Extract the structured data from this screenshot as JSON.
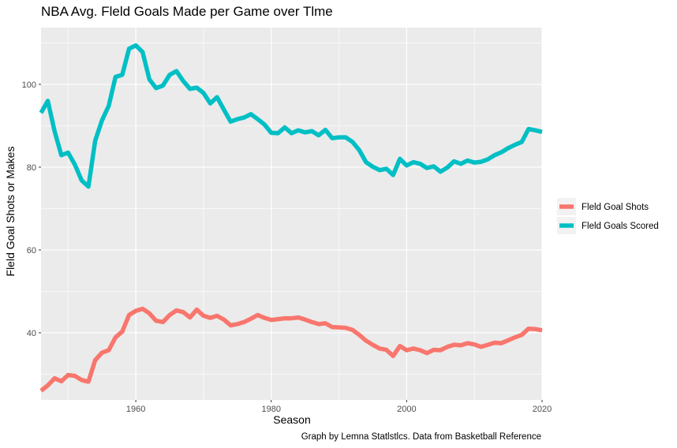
{
  "chart_data": {
    "type": "line",
    "title": "NBA Avg. Fleld Goals Made per Game over Tlme",
    "xlabel": "Season",
    "ylabel": "Fleld Goal Shots or Makes",
    "caption": "Graph by Lemna Statlstlcs. Data from Basketball Reference",
    "xlim": [
      1946,
      2020
    ],
    "ylim": [
      23.8,
      113.7
    ],
    "x_ticks": [
      1960,
      1980,
      2000,
      2020
    ],
    "y_ticks": [
      40,
      60,
      80,
      100
    ],
    "grid": true,
    "legend_position": "right",
    "x": [
      1946,
      1947,
      1948,
      1949,
      1950,
      1951,
      1952,
      1953,
      1954,
      1955,
      1956,
      1957,
      1958,
      1959,
      1960,
      1961,
      1962,
      1963,
      1964,
      1965,
      1966,
      1967,
      1968,
      1969,
      1970,
      1971,
      1972,
      1973,
      1974,
      1975,
      1976,
      1977,
      1978,
      1979,
      1980,
      1981,
      1982,
      1983,
      1984,
      1985,
      1986,
      1987,
      1988,
      1989,
      1990,
      1991,
      1992,
      1993,
      1994,
      1995,
      1996,
      1997,
      1998,
      1999,
      2000,
      2001,
      2002,
      2003,
      2004,
      2005,
      2006,
      2007,
      2008,
      2009,
      2010,
      2011,
      2012,
      2013,
      2014,
      2015,
      2016,
      2017,
      2018,
      2019,
      2020
    ],
    "series": [
      {
        "name": "Fleld Goal Shots",
        "color": "#F8766D",
        "values": [
          26.0,
          27.3,
          29.0,
          28.3,
          29.8,
          29.6,
          28.6,
          28.2,
          33.4,
          35.2,
          35.8,
          38.9,
          40.3,
          44.3,
          45.3,
          45.8,
          44.7,
          42.9,
          42.6,
          44.3,
          45.4,
          45.0,
          43.7,
          45.6,
          44.1,
          43.6,
          44.1,
          43.2,
          41.8,
          42.1,
          42.6,
          43.4,
          44.3,
          43.6,
          43.1,
          43.3,
          43.5,
          43.5,
          43.7,
          43.2,
          42.6,
          42.1,
          42.3,
          41.4,
          41.3,
          41.2,
          40.7,
          39.5,
          38.1,
          37.1,
          36.2,
          35.9,
          34.4,
          36.8,
          35.8,
          36.2,
          35.8,
          35.1,
          35.9,
          35.8,
          36.6,
          37.1,
          37.0,
          37.5,
          37.2,
          36.6,
          37.1,
          37.6,
          37.5,
          38.2,
          38.9,
          39.5,
          41.0,
          40.9,
          40.6
        ]
      },
      {
        "name": "Fleld Goals Scored",
        "color": "#00BFC4",
        "values": [
          93.1,
          96.0,
          88.7,
          82.9,
          83.5,
          80.6,
          76.8,
          75.3,
          86.4,
          91.3,
          94.8,
          101.8,
          102.3,
          108.6,
          109.4,
          107.8,
          101.2,
          99.1,
          99.7,
          102.3,
          103.2,
          100.8,
          98.9,
          99.2,
          97.9,
          95.4,
          96.9,
          93.9,
          91.0,
          91.6,
          92.0,
          92.8,
          91.6,
          90.3,
          88.3,
          88.2,
          89.6,
          88.2,
          88.9,
          88.4,
          88.7,
          87.7,
          89.0,
          87.0,
          87.2,
          87.2,
          86.1,
          84.1,
          81.2,
          80.1,
          79.3,
          79.6,
          78.1,
          82.0,
          80.4,
          81.2,
          80.8,
          79.8,
          80.2,
          78.9,
          79.9,
          81.4,
          80.8,
          81.6,
          81.1,
          81.3,
          81.9,
          82.9,
          83.6,
          84.6,
          85.4,
          86.1,
          89.2,
          88.9,
          88.5
        ]
      }
    ]
  }
}
